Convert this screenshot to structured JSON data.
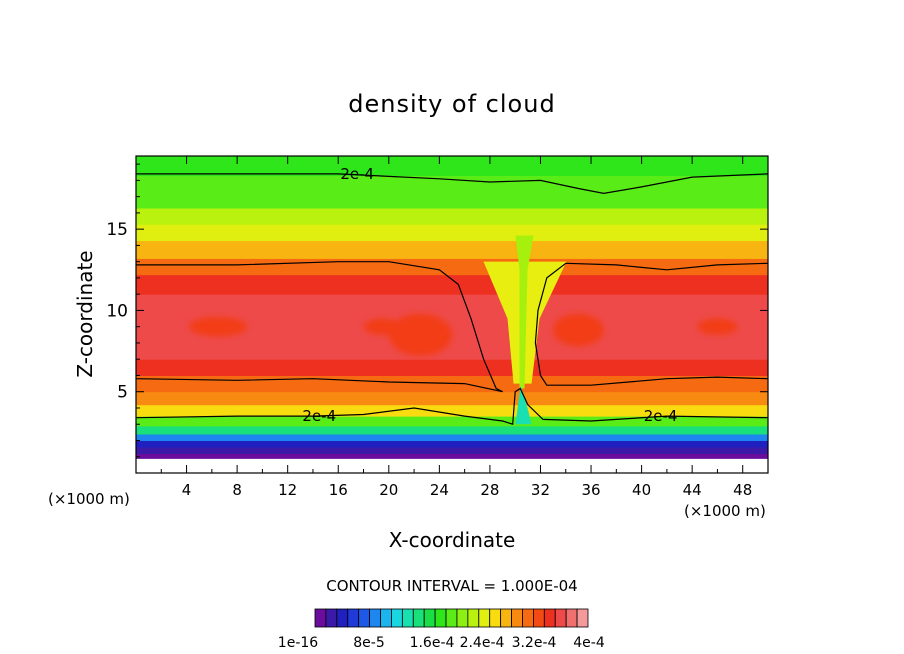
{
  "chart_data": {
    "type": "heatmap",
    "title": "density of cloud",
    "xlabel": "X-coordinate",
    "ylabel": "Z-coordinate",
    "x_units": "(×1000 m)",
    "y_units": "(×1000 m)",
    "xlim": [
      0,
      50
    ],
    "ylim": [
      0,
      19.5
    ],
    "x_ticks": [
      4,
      8,
      12,
      16,
      20,
      24,
      28,
      32,
      36,
      40,
      44,
      48
    ],
    "y_ticks": [
      5,
      10,
      15
    ],
    "contour_interval_label": "CONTOUR INTERVAL = 1.000E-04",
    "contour_level": "2e-4",
    "contour_labels": [
      {
        "text": "2e-4",
        "x": 17.5,
        "z": 18.4
      },
      {
        "text": "2e-4",
        "x": 14.5,
        "z": 3.5
      },
      {
        "text": "2e-4",
        "x": 41.5,
        "z": 3.5
      }
    ],
    "colorbar": {
      "min": 1e-16,
      "max": 0.0004,
      "labels": [
        "1e-16",
        "8e-5",
        "1.6e-4",
        "2.4e-4",
        "3.2e-4",
        "4e-4"
      ],
      "colors": [
        "#6a0d9c",
        "#3b1aa8",
        "#2020c0",
        "#1f3ad6",
        "#1e58e6",
        "#1d86ef",
        "#1cb4ee",
        "#1ad6e0",
        "#19e0b0",
        "#19e07a",
        "#1ade45",
        "#2ee61a",
        "#5aec16",
        "#8cf012",
        "#b8f20e",
        "#e0ef10",
        "#f8dc10",
        "#f8b410",
        "#f88a12",
        "#f66a12",
        "#f24a12",
        "#ee3020",
        "#ee4a4a",
        "#f07070",
        "#f59a9a"
      ]
    },
    "field_bands": [
      {
        "z0": 0.9,
        "z1": 1.2,
        "value": 0.0
      },
      {
        "z0": 1.2,
        "z1": 1.6,
        "value": 0.04
      },
      {
        "z0": 1.6,
        "z1": 2.0,
        "value": 0.1
      },
      {
        "z0": 2.0,
        "z1": 2.4,
        "value": 0.2
      },
      {
        "z0": 2.4,
        "z1": 2.9,
        "value": 0.36
      },
      {
        "z0": 2.9,
        "z1": 3.5,
        "value": 0.52
      },
      {
        "z0": 3.5,
        "z1": 4.2,
        "value": 0.66
      },
      {
        "z0": 4.2,
        "z1": 5.0,
        "value": 0.74
      },
      {
        "z0": 5.0,
        "z1": 6.0,
        "value": 0.8
      },
      {
        "z0": 6.0,
        "z1": 7.0,
        "value": 0.86
      },
      {
        "z0": 7.0,
        "z1": 11.0,
        "value": 0.9
      },
      {
        "z0": 11.0,
        "z1": 12.2,
        "value": 0.86
      },
      {
        "z0": 12.2,
        "z1": 13.2,
        "value": 0.8
      },
      {
        "z0": 13.2,
        "z1": 14.3,
        "value": 0.72
      },
      {
        "z0": 14.3,
        "z1": 15.3,
        "value": 0.64
      },
      {
        "z0": 15.3,
        "z1": 16.3,
        "value": 0.58
      },
      {
        "z0": 16.3,
        "z1": 17.3,
        "value": 0.52
      },
      {
        "z0": 17.3,
        "z1": 18.3,
        "value": 0.48
      },
      {
        "z0": 18.3,
        "z1": 19.5,
        "value": 0.44
      }
    ],
    "red_patches": [
      {
        "x": 22.5,
        "z": 8.5,
        "rx": 2.5,
        "rz": 1.3
      },
      {
        "x": 19.5,
        "z": 9.0,
        "rx": 1.5,
        "rz": 0.5
      },
      {
        "x": 6.5,
        "z": 9.0,
        "rx": 2.3,
        "rz": 0.6
      },
      {
        "x": 35.0,
        "z": 8.8,
        "rx": 2.0,
        "rz": 1.0
      },
      {
        "x": 46.0,
        "z": 9.0,
        "rx": 1.6,
        "rz": 0.5
      }
    ],
    "downdraft": {
      "x": 30.5,
      "value": 0.58
    }
  }
}
